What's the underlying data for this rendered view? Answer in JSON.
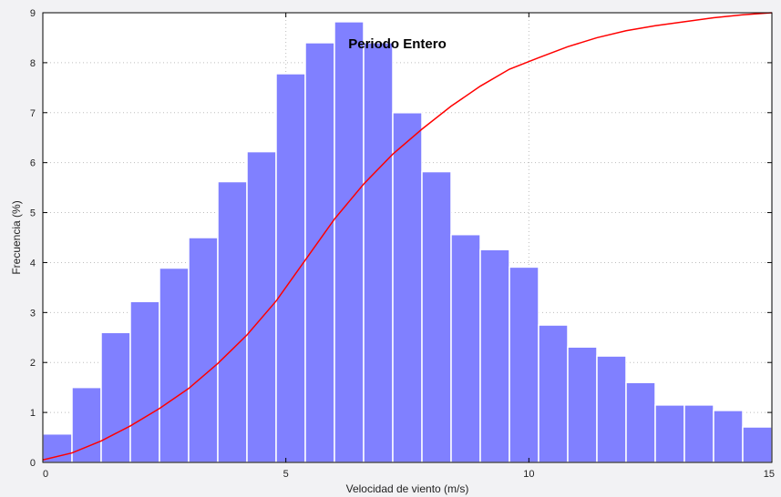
{
  "chart_data": {
    "type": "bar",
    "title": "Periodo Entero",
    "xlabel": "Velocidad de viento (m/s)",
    "ylabel": "Frecuencia (%)",
    "xlim": [
      0,
      15
    ],
    "ylim": [
      0,
      9
    ],
    "xticks": [
      0,
      5,
      10,
      15
    ],
    "yticks": [
      0,
      1,
      2,
      3,
      4,
      5,
      6,
      7,
      8,
      9
    ],
    "grid": true,
    "bin_width": 0.6,
    "bar_color": "#8080ff",
    "bar_edge_color": "#ffffff",
    "line_color": "#ff0000",
    "bins": [
      {
        "x0": 0.0,
        "x1": 0.6,
        "value": 0.57
      },
      {
        "x0": 0.6,
        "x1": 1.2,
        "value": 1.5
      },
      {
        "x0": 1.2,
        "x1": 1.8,
        "value": 2.6
      },
      {
        "x0": 1.8,
        "x1": 2.4,
        "value": 3.22
      },
      {
        "x0": 2.4,
        "x1": 3.0,
        "value": 3.89
      },
      {
        "x0": 3.0,
        "x1": 3.6,
        "value": 4.5
      },
      {
        "x0": 3.6,
        "x1": 4.2,
        "value": 5.62
      },
      {
        "x0": 4.2,
        "x1": 4.8,
        "value": 6.22
      },
      {
        "x0": 4.8,
        "x1": 5.4,
        "value": 7.78
      },
      {
        "x0": 5.4,
        "x1": 6.0,
        "value": 8.4
      },
      {
        "x0": 6.0,
        "x1": 6.6,
        "value": 8.82
      },
      {
        "x0": 6.6,
        "x1": 7.2,
        "value": 8.4
      },
      {
        "x0": 7.2,
        "x1": 7.8,
        "value": 7.0
      },
      {
        "x0": 7.8,
        "x1": 8.4,
        "value": 5.82
      },
      {
        "x0": 8.4,
        "x1": 9.0,
        "value": 4.56
      },
      {
        "x0": 9.0,
        "x1": 9.6,
        "value": 4.26
      },
      {
        "x0": 9.6,
        "x1": 10.2,
        "value": 3.91
      },
      {
        "x0": 10.2,
        "x1": 10.8,
        "value": 2.75
      },
      {
        "x0": 10.8,
        "x1": 11.4,
        "value": 2.31
      },
      {
        "x0": 11.4,
        "x1": 12.0,
        "value": 2.13
      },
      {
        "x0": 12.0,
        "x1": 12.6,
        "value": 1.6
      },
      {
        "x0": 12.6,
        "x1": 13.2,
        "value": 1.15
      },
      {
        "x0": 13.2,
        "x1": 13.8,
        "value": 1.15
      },
      {
        "x0": 13.8,
        "x1": 14.4,
        "value": 1.04
      },
      {
        "x0": 14.4,
        "x1": 15.0,
        "value": 0.71
      }
    ],
    "cumulative_line": {
      "x": [
        0.0,
        0.6,
        1.2,
        1.8,
        2.4,
        3.0,
        3.6,
        4.2,
        4.8,
        5.4,
        6.0,
        6.6,
        7.2,
        7.8,
        8.4,
        9.0,
        9.6,
        10.2,
        10.8,
        11.4,
        12.0,
        12.6,
        13.2,
        13.8,
        14.4,
        15.0
      ],
      "y": [
        0.05,
        0.19,
        0.43,
        0.73,
        1.08,
        1.48,
        1.98,
        2.55,
        3.23,
        4.05,
        4.87,
        5.57,
        6.17,
        6.67,
        7.13,
        7.53,
        7.87,
        8.1,
        8.32,
        8.5,
        8.64,
        8.74,
        8.82,
        8.9,
        8.96,
        9.0
      ]
    }
  }
}
